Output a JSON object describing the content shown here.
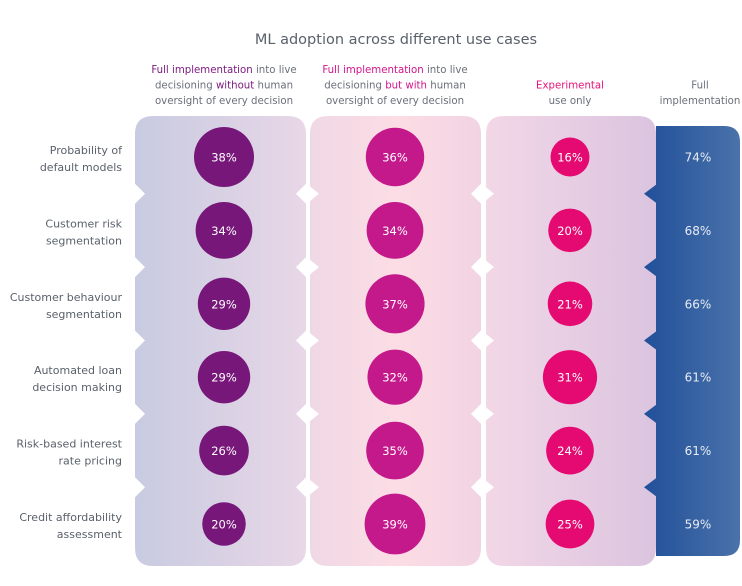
{
  "chart_data": {
    "type": "bubble-table",
    "title": "ML adoption across different use cases",
    "columns": [
      {
        "key": "full_without_oversight",
        "header_lines": [
          [
            {
              "text": "Full implementation",
              "highlight": true
            },
            {
              "text": " into live",
              "highlight": false
            }
          ],
          [
            {
              "text": "decisioning ",
              "highlight": false
            },
            {
              "text": "without",
              "highlight": true
            },
            {
              "text": " human",
              "highlight": false
            }
          ],
          [
            {
              "text": "oversight of every decision",
              "highlight": false
            }
          ]
        ],
        "highlight_color": "#7b1a7e",
        "bubble_color": "#77177a"
      },
      {
        "key": "full_with_oversight",
        "header_lines": [
          [
            {
              "text": "Full implementation",
              "highlight": true
            },
            {
              "text": " into live",
              "highlight": false
            }
          ],
          [
            {
              "text": "decisioning ",
              "highlight": false
            },
            {
              "text": "but with",
              "highlight": true
            },
            {
              "text": " human",
              "highlight": false
            }
          ],
          [
            {
              "text": "oversight of every decision",
              "highlight": false
            }
          ]
        ],
        "highlight_color": "#d4148c",
        "bubble_color": "#c4198a"
      },
      {
        "key": "experimental",
        "header_lines": [
          [
            {
              "text": "Experimental",
              "highlight": true
            }
          ],
          [
            {
              "text": "use only",
              "highlight": false
            }
          ]
        ],
        "highlight_color": "#e8137a",
        "bubble_color": "#e50a72"
      },
      {
        "key": "full_implementation",
        "header_lines": [
          [
            {
              "text": "Full",
              "highlight": false
            }
          ],
          [
            {
              "text": "implementation",
              "highlight": false
            }
          ]
        ],
        "highlight_color": "#2b5596",
        "bubble_color": null
      }
    ],
    "rows": [
      {
        "label": [
          "Probability of",
          "default models"
        ],
        "values": [
          38,
          36,
          16,
          74
        ]
      },
      {
        "label": [
          "Customer risk",
          "segmentation"
        ],
        "values": [
          34,
          34,
          20,
          68
        ]
      },
      {
        "label": [
          "Customer behaviour",
          "segmentation"
        ],
        "values": [
          29,
          37,
          21,
          66
        ]
      },
      {
        "label": [
          "Automated loan",
          "decision making"
        ],
        "values": [
          29,
          32,
          31,
          61
        ]
      },
      {
        "label": [
          "Risk-based interest",
          "rate pricing"
        ],
        "values": [
          26,
          35,
          24,
          61
        ]
      },
      {
        "label": [
          "Credit affordability",
          "assessment"
        ],
        "values": [
          20,
          39,
          25,
          59
        ]
      }
    ],
    "value_suffix": "%",
    "encoding": "bubble area proportional to percentage for first three columns; last column shown as text only",
    "colors": {
      "panel1_gradient": [
        "#c9cce2",
        "#e6d6e6"
      ],
      "panel2_gradient": [
        "#f0d9e6",
        "#fcdce4",
        "#f3d3e2"
      ],
      "panel3_gradient": [
        "#f1d7e6",
        "#dcc5df"
      ],
      "panel4_gradient": [
        "#24539a",
        "#4670aa"
      ],
      "text_gray": "#5f6670"
    }
  }
}
